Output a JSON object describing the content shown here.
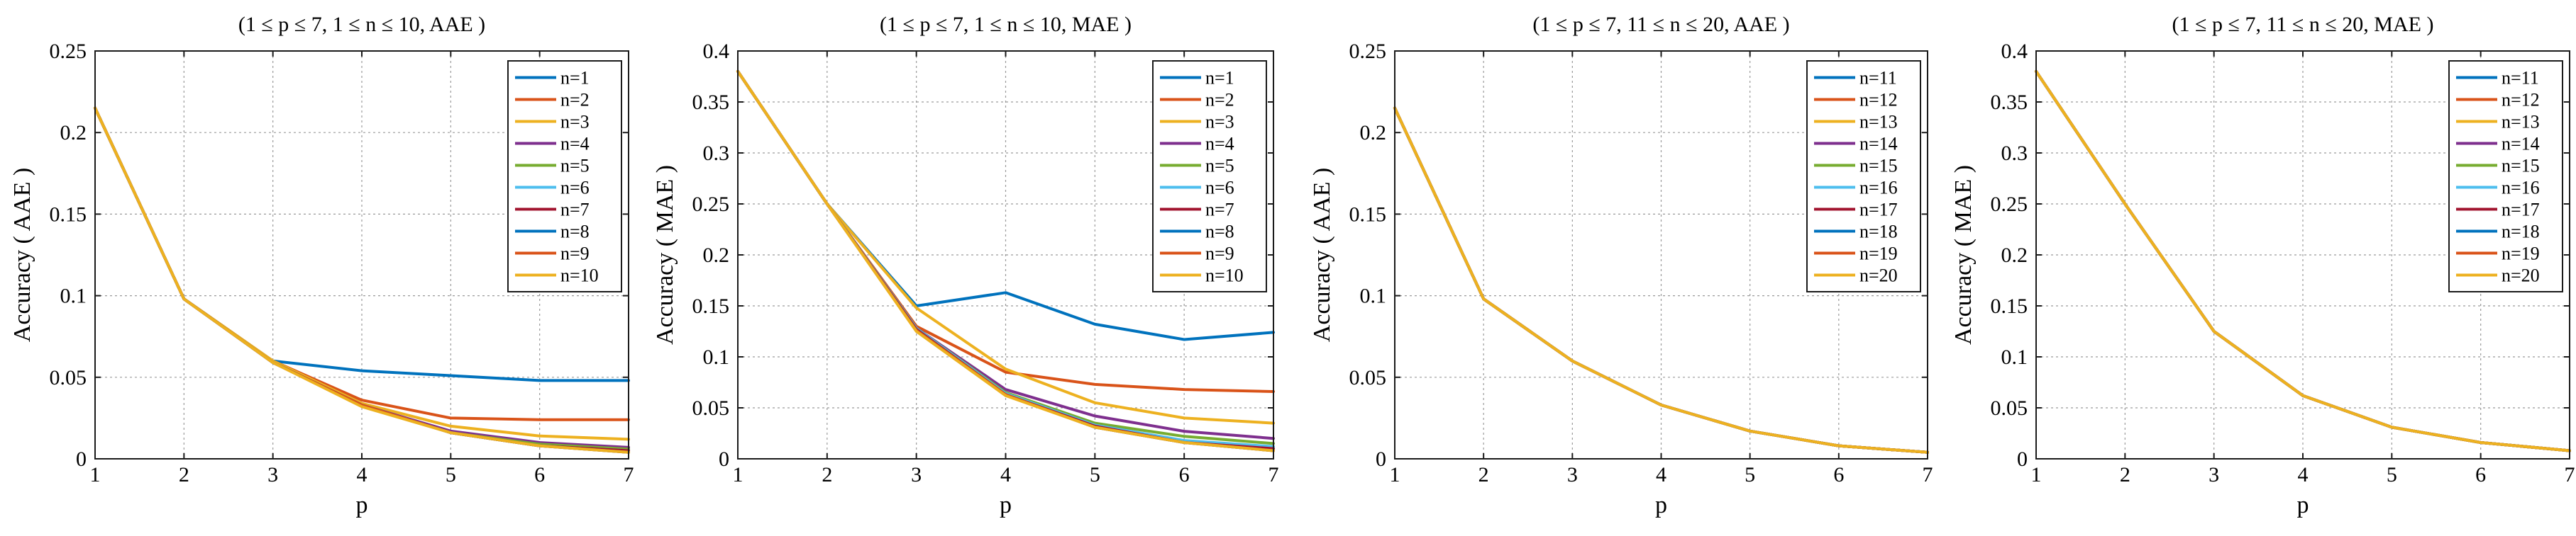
{
  "chart_data": [
    {
      "type": "line",
      "title": "(1 ≤ p ≤ 7, 1 ≤ n ≤ 10, AAE )",
      "xlabel": "p",
      "ylabel": "Accuracy ( AAE )",
      "xlim": [
        1,
        7
      ],
      "ylim": [
        0,
        0.25
      ],
      "xticks": [
        "1",
        "2",
        "3",
        "4",
        "5",
        "6",
        "7"
      ],
      "yticks": [
        "0",
        "0.05",
        "0.1",
        "0.15",
        "0.2",
        "0.25"
      ],
      "grid": true,
      "legend_position": "top-right",
      "x": [
        1,
        2,
        3,
        4,
        5,
        6,
        7
      ],
      "series": [
        {
          "name": "n=1",
          "color": "#0072BD",
          "values": [
            0.215,
            0.098,
            0.06,
            0.054,
            0.051,
            0.048,
            0.048
          ]
        },
        {
          "name": "n=2",
          "color": "#D95319",
          "values": [
            0.215,
            0.098,
            0.06,
            0.036,
            0.025,
            0.024,
            0.024
          ]
        },
        {
          "name": "n=3",
          "color": "#EDB120",
          "values": [
            0.215,
            0.098,
            0.06,
            0.034,
            0.02,
            0.014,
            0.012
          ]
        },
        {
          "name": "n=4",
          "color": "#7E2F8E",
          "values": [
            0.215,
            0.098,
            0.059,
            0.033,
            0.017,
            0.01,
            0.007
          ]
        },
        {
          "name": "n=5",
          "color": "#77AC30",
          "values": [
            0.215,
            0.098,
            0.059,
            0.033,
            0.016,
            0.009,
            0.006
          ]
        },
        {
          "name": "n=6",
          "color": "#4DBEEE",
          "values": [
            0.215,
            0.098,
            0.059,
            0.033,
            0.016,
            0.008,
            0.005
          ]
        },
        {
          "name": "n=7",
          "color": "#A2142F",
          "values": [
            0.215,
            0.098,
            0.059,
            0.033,
            0.016,
            0.008,
            0.005
          ]
        },
        {
          "name": "n=8",
          "color": "#0072BD",
          "values": [
            0.215,
            0.098,
            0.059,
            0.033,
            0.016,
            0.008,
            0.004
          ]
        },
        {
          "name": "n=9",
          "color": "#D95319",
          "values": [
            0.215,
            0.098,
            0.059,
            0.033,
            0.016,
            0.008,
            0.004
          ]
        },
        {
          "name": "n=10",
          "color": "#EDB120",
          "values": [
            0.215,
            0.098,
            0.059,
            0.032,
            0.016,
            0.008,
            0.004
          ]
        }
      ]
    },
    {
      "type": "line",
      "title": "(1 ≤ p ≤ 7, 1 ≤ n ≤ 10, MAE )",
      "xlabel": "p",
      "ylabel": "Accuracy ( MAE )",
      "xlim": [
        1,
        7
      ],
      "ylim": [
        0,
        0.4
      ],
      "xticks": [
        "1",
        "2",
        "3",
        "4",
        "5",
        "6",
        "7"
      ],
      "yticks": [
        "0",
        "0.05",
        "0.1",
        "0.15",
        "0.2",
        "0.25",
        "0.3",
        "0.35",
        "0.4"
      ],
      "grid": true,
      "legend_position": "top-right",
      "x": [
        1,
        2,
        3,
        4,
        5,
        6,
        7
      ],
      "series": [
        {
          "name": "n=1",
          "color": "#0072BD",
          "values": [
            0.38,
            0.25,
            0.15,
            0.163,
            0.132,
            0.117,
            0.124
          ]
        },
        {
          "name": "n=2",
          "color": "#D95319",
          "values": [
            0.38,
            0.25,
            0.13,
            0.085,
            0.073,
            0.068,
            0.066
          ]
        },
        {
          "name": "n=3",
          "color": "#EDB120",
          "values": [
            0.38,
            0.25,
            0.148,
            0.088,
            0.055,
            0.04,
            0.035
          ]
        },
        {
          "name": "n=4",
          "color": "#7E2F8E",
          "values": [
            0.38,
            0.25,
            0.128,
            0.068,
            0.042,
            0.027,
            0.02
          ]
        },
        {
          "name": "n=5",
          "color": "#77AC30",
          "values": [
            0.38,
            0.25,
            0.128,
            0.065,
            0.035,
            0.022,
            0.015
          ]
        },
        {
          "name": "n=6",
          "color": "#4DBEEE",
          "values": [
            0.38,
            0.25,
            0.128,
            0.064,
            0.033,
            0.018,
            0.012
          ]
        },
        {
          "name": "n=7",
          "color": "#A2142F",
          "values": [
            0.38,
            0.25,
            0.127,
            0.063,
            0.032,
            0.016,
            0.01
          ]
        },
        {
          "name": "n=8",
          "color": "#0072BD",
          "values": [
            0.38,
            0.25,
            0.126,
            0.063,
            0.031,
            0.016,
            0.008
          ]
        },
        {
          "name": "n=9",
          "color": "#D95319",
          "values": [
            0.38,
            0.25,
            0.126,
            0.063,
            0.031,
            0.016,
            0.008
          ]
        },
        {
          "name": "n=10",
          "color": "#EDB120",
          "values": [
            0.38,
            0.25,
            0.125,
            0.062,
            0.031,
            0.016,
            0.008
          ]
        }
      ]
    },
    {
      "type": "line",
      "title": "(1 ≤ p ≤ 7, 11 ≤ n ≤ 20, AAE )",
      "xlabel": "p",
      "ylabel": "Accuracy ( AAE )",
      "xlim": [
        1,
        7
      ],
      "ylim": [
        0,
        0.25
      ],
      "xticks": [
        "1",
        "2",
        "3",
        "4",
        "5",
        "6",
        "7"
      ],
      "yticks": [
        "0",
        "0.05",
        "0.1",
        "0.15",
        "0.2",
        "0.25"
      ],
      "grid": true,
      "legend_position": "top-right",
      "x": [
        1,
        2,
        3,
        4,
        5,
        6,
        7
      ],
      "series": [
        {
          "name": "n=11",
          "color": "#0072BD",
          "values": [
            0.215,
            0.098,
            0.06,
            0.033,
            0.017,
            0.008,
            0.004
          ]
        },
        {
          "name": "n=12",
          "color": "#D95319",
          "values": [
            0.215,
            0.098,
            0.06,
            0.033,
            0.017,
            0.008,
            0.004
          ]
        },
        {
          "name": "n=13",
          "color": "#EDB120",
          "values": [
            0.215,
            0.098,
            0.06,
            0.033,
            0.017,
            0.008,
            0.004
          ]
        },
        {
          "name": "n=14",
          "color": "#7E2F8E",
          "values": [
            0.215,
            0.098,
            0.06,
            0.033,
            0.017,
            0.008,
            0.004
          ]
        },
        {
          "name": "n=15",
          "color": "#77AC30",
          "values": [
            0.215,
            0.098,
            0.06,
            0.033,
            0.017,
            0.008,
            0.004
          ]
        },
        {
          "name": "n=16",
          "color": "#4DBEEE",
          "values": [
            0.215,
            0.098,
            0.06,
            0.033,
            0.017,
            0.008,
            0.004
          ]
        },
        {
          "name": "n=17",
          "color": "#A2142F",
          "values": [
            0.215,
            0.098,
            0.06,
            0.033,
            0.017,
            0.008,
            0.004
          ]
        },
        {
          "name": "n=18",
          "color": "#0072BD",
          "values": [
            0.215,
            0.098,
            0.06,
            0.033,
            0.017,
            0.008,
            0.004
          ]
        },
        {
          "name": "n=19",
          "color": "#D95319",
          "values": [
            0.215,
            0.098,
            0.06,
            0.033,
            0.017,
            0.008,
            0.004
          ]
        },
        {
          "name": "n=20",
          "color": "#EDB120",
          "values": [
            0.215,
            0.098,
            0.06,
            0.033,
            0.017,
            0.008,
            0.004
          ]
        }
      ]
    },
    {
      "type": "line",
      "title": "(1 ≤ p ≤ 7, 11 ≤ n ≤ 20, MAE )",
      "xlabel": "p",
      "ylabel": "Accuracy ( MAE )",
      "xlim": [
        1,
        7
      ],
      "ylim": [
        0,
        0.4
      ],
      "xticks": [
        "1",
        "2",
        "3",
        "4",
        "5",
        "6",
        "7"
      ],
      "yticks": [
        "0",
        "0.05",
        "0.1",
        "0.15",
        "0.2",
        "0.25",
        "0.3",
        "0.35",
        "0.4"
      ],
      "grid": true,
      "legend_position": "top-right",
      "x": [
        1,
        2,
        3,
        4,
        5,
        6,
        7
      ],
      "series": [
        {
          "name": "n=11",
          "color": "#0072BD",
          "values": [
            0.38,
            0.25,
            0.125,
            0.062,
            0.031,
            0.016,
            0.008
          ]
        },
        {
          "name": "n=12",
          "color": "#D95319",
          "values": [
            0.38,
            0.25,
            0.125,
            0.062,
            0.031,
            0.016,
            0.008
          ]
        },
        {
          "name": "n=13",
          "color": "#EDB120",
          "values": [
            0.38,
            0.25,
            0.125,
            0.062,
            0.031,
            0.016,
            0.008
          ]
        },
        {
          "name": "n=14",
          "color": "#7E2F8E",
          "values": [
            0.38,
            0.25,
            0.125,
            0.062,
            0.031,
            0.016,
            0.008
          ]
        },
        {
          "name": "n=15",
          "color": "#77AC30",
          "values": [
            0.38,
            0.25,
            0.125,
            0.062,
            0.031,
            0.016,
            0.008
          ]
        },
        {
          "name": "n=16",
          "color": "#4DBEEE",
          "values": [
            0.38,
            0.25,
            0.125,
            0.062,
            0.031,
            0.016,
            0.008
          ]
        },
        {
          "name": "n=17",
          "color": "#A2142F",
          "values": [
            0.38,
            0.25,
            0.125,
            0.062,
            0.031,
            0.016,
            0.008
          ]
        },
        {
          "name": "n=18",
          "color": "#0072BD",
          "values": [
            0.38,
            0.25,
            0.125,
            0.062,
            0.031,
            0.016,
            0.008
          ]
        },
        {
          "name": "n=19",
          "color": "#D95319",
          "values": [
            0.38,
            0.25,
            0.125,
            0.062,
            0.031,
            0.016,
            0.008
          ]
        },
        {
          "name": "n=20",
          "color": "#EDB120",
          "values": [
            0.38,
            0.25,
            0.125,
            0.062,
            0.031,
            0.016,
            0.008
          ]
        }
      ]
    }
  ]
}
